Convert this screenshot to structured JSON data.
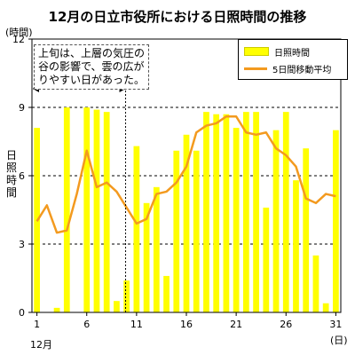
{
  "chart_data": {
    "type": "bar",
    "title": "12月の日立市役所における日照時間の推移",
    "ylabel_top": "(時間)",
    "ylabel": "日照時間",
    "x_unit": "(日)",
    "x_month": "12月",
    "ylim": [
      0,
      12
    ],
    "yticks": [
      0,
      3,
      6,
      9,
      12
    ],
    "xticks": [
      1,
      6,
      11,
      16,
      21,
      26,
      31
    ],
    "grid": "dashed horizontal at 3, 6, 9",
    "legend_position": "top-right",
    "days": [
      1,
      2,
      3,
      4,
      5,
      6,
      7,
      8,
      9,
      10,
      11,
      12,
      13,
      14,
      15,
      16,
      17,
      18,
      19,
      20,
      21,
      22,
      23,
      24,
      25,
      26,
      27,
      28,
      29,
      30,
      31
    ],
    "series": [
      {
        "name": "日照時間",
        "type": "bar",
        "color": "#ffff00",
        "values": [
          8.1,
          0.0,
          0.2,
          9.0,
          0.0,
          9.0,
          8.9,
          8.8,
          0.5,
          1.4,
          7.3,
          4.8,
          5.5,
          1.6,
          7.1,
          7.8,
          7.1,
          8.8,
          8.7,
          8.7,
          8.1,
          8.8,
          8.8,
          4.6,
          8.0,
          8.8,
          5.8,
          7.2,
          2.5,
          0.4,
          8.0
        ]
      },
      {
        "name": "5日間移動平均",
        "type": "line",
        "color": "#f39a1f",
        "values": [
          4.0,
          4.7,
          3.5,
          3.6,
          5.2,
          7.1,
          5.5,
          5.7,
          5.3,
          4.6,
          3.9,
          4.1,
          5.2,
          5.3,
          5.7,
          6.4,
          7.9,
          8.2,
          8.3,
          8.6,
          8.6,
          7.9,
          7.8,
          7.9,
          7.2,
          6.9,
          6.4,
          5.0,
          4.8,
          5.2,
          5.1
        ]
      }
    ],
    "annotation": "上旬は、上層の気圧の谷の影響で、雲の広がりやすい日があった。",
    "annotation_range": [
      1,
      10
    ]
  }
}
